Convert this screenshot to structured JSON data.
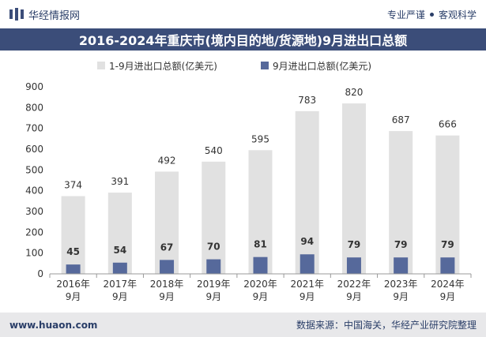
{
  "header": {
    "brand": "华经情报网",
    "tagline_left": "专业严谨",
    "tagline_right": "客观科学"
  },
  "title": "2016-2024年重庆市(境内目的地/货源地)9月进出口总额",
  "footer": {
    "url": "www.huaon.com",
    "source": "数据来源：中国海关，华经产业研究院整理"
  },
  "colors": {
    "header_bg": "#3b4d79",
    "bar_total": "#e1e1e1",
    "bar_sept": "#56699b",
    "footer_bg": "#e8e8ea"
  },
  "chart_data": {
    "type": "bar",
    "categories": [
      "2016年\n9月",
      "2017年\n9月",
      "2018年\n9月",
      "2019年\n9月",
      "2020年\n9月",
      "2021年\n9月",
      "2022年\n9月",
      "2023年\n9月",
      "2024年\n9月"
    ],
    "series": [
      {
        "name": "1-9月进出口总额(亿美元)",
        "values": [
          374,
          391,
          492,
          540,
          595,
          783,
          820,
          687,
          666
        ]
      },
      {
        "name": "9月进出口总额(亿美元)",
        "values": [
          45,
          54,
          67,
          70,
          81,
          94,
          79,
          79,
          79
        ]
      }
    ],
    "ylim": [
      0,
      900
    ],
    "yticks": [
      0,
      100,
      200,
      300,
      400,
      500,
      600,
      700,
      800,
      900
    ],
    "legend_position": "top"
  }
}
